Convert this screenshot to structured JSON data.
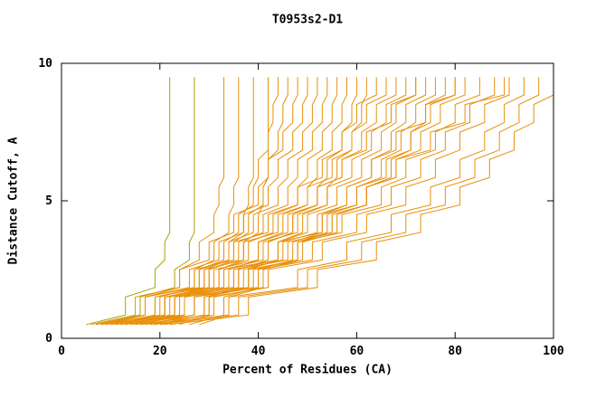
{
  "chart_data": {
    "type": "line",
    "title": "T0953s2-D1",
    "xlabel": "Percent of Residues (CA)",
    "ylabel": "Distance Cutoff, A",
    "xlim": [
      0,
      100
    ],
    "ylim": [
      0,
      10
    ],
    "x_ticks": [
      0,
      20,
      40,
      60,
      80,
      100
    ],
    "y_ticks": [
      0,
      5,
      10
    ],
    "grid": false,
    "legend": "none",
    "line_color": "#e8900a",
    "alt_line_color": "#a8a400",
    "frame_color": "#000000",
    "background_color": "#ffffff",
    "cutoffs": [
      0.5,
      1.5,
      2.5,
      3.5,
      4.5,
      5.5,
      6.5,
      7.5,
      8.5,
      9.5
    ],
    "series": [
      {
        "color": "#a8a400",
        "percents": [
          5,
          13,
          19,
          21,
          22,
          22,
          22,
          22,
          22,
          22
        ]
      },
      {
        "color": "#a8a400",
        "percents": [
          7,
          16,
          23,
          26,
          27,
          27,
          27,
          27,
          27,
          27
        ]
      },
      {
        "percents": [
          9,
          17,
          24,
          28,
          31,
          32,
          33,
          33,
          33,
          33
        ]
      },
      {
        "percents": [
          11,
          20,
          27,
          31,
          34,
          35,
          36,
          36,
          36,
          36
        ]
      },
      {
        "percents": [
          13,
          22,
          29,
          34,
          37,
          38,
          39,
          39,
          39,
          39
        ]
      },
      {
        "percents": [
          15,
          24,
          32,
          37,
          40,
          41,
          42,
          42,
          42,
          42
        ]
      },
      {
        "percents": [
          17,
          23,
          28,
          33,
          36,
          39,
          40,
          42,
          43,
          44
        ]
      },
      {
        "percents": [
          19,
          25,
          30,
          35,
          38,
          41,
          42,
          44,
          45,
          46
        ]
      },
      {
        "percents": [
          6,
          15,
          24,
          30,
          35,
          40,
          42,
          45,
          47,
          48
        ]
      },
      {
        "percents": [
          8,
          17,
          26,
          32,
          37,
          42,
          44,
          47,
          49,
          50
        ]
      },
      {
        "percents": [
          10,
          19,
          28,
          34,
          39,
          44,
          46,
          49,
          51,
          52
        ]
      },
      {
        "percents": [
          12,
          21,
          30,
          36,
          41,
          46,
          48,
          51,
          53,
          54
        ]
      },
      {
        "percents": [
          14,
          23,
          32,
          38,
          43,
          48,
          50,
          53,
          55,
          56
        ]
      },
      {
        "percents": [
          16,
          25,
          34,
          40,
          45,
          50,
          52,
          55,
          57,
          58
        ]
      },
      {
        "percents": [
          18,
          27,
          36,
          42,
          47,
          52,
          54,
          57,
          59,
          60
        ]
      },
      {
        "percents": [
          20,
          29,
          38,
          44,
          49,
          54,
          56,
          59,
          61,
          62
        ]
      },
      {
        "percents": [
          7,
          17,
          27,
          35,
          42,
          48,
          53,
          57,
          60,
          64
        ]
      },
      {
        "percents": [
          9,
          19,
          29,
          37,
          44,
          50,
          55,
          59,
          62,
          66
        ]
      },
      {
        "percents": [
          11,
          21,
          31,
          40,
          46,
          52,
          57,
          61,
          64,
          68
        ]
      },
      {
        "percents": [
          13,
          23,
          33,
          41,
          48,
          54,
          59,
          63,
          66,
          70
        ]
      },
      {
        "percents": [
          15,
          25,
          35,
          44,
          50,
          56,
          61,
          65,
          68,
          72
        ]
      },
      {
        "percents": [
          17,
          27,
          37,
          45,
          52,
          58,
          63,
          67,
          70,
          74
        ]
      },
      {
        "percents": [
          19,
          29,
          39,
          48,
          54,
          60,
          65,
          69,
          72,
          76
        ]
      },
      {
        "percents": [
          21,
          31,
          41,
          49,
          56,
          62,
          67,
          71,
          74,
          78
        ]
      },
      {
        "percents": [
          8,
          21,
          33,
          44,
          53,
          60,
          66,
          71,
          75,
          80
        ]
      },
      {
        "percents": [
          10,
          23,
          35,
          46,
          55,
          62,
          68,
          73,
          77,
          82
        ]
      },
      {
        "percents": [
          12,
          25,
          38,
          48,
          57,
          65,
          70,
          76,
          80,
          85
        ]
      },
      {
        "percents": [
          14,
          27,
          40,
          51,
          60,
          67,
          73,
          78,
          83,
          88
        ]
      },
      {
        "percents": [
          16,
          30,
          42,
          53,
          62,
          70,
          76,
          81,
          86,
          91
        ]
      },
      {
        "percents": [
          18,
          34,
          48,
          58,
          67,
          75,
          81,
          86,
          90,
          94
        ]
      },
      {
        "percents": [
          20,
          36,
          50,
          61,
          70,
          78,
          84,
          89,
          93,
          97
        ]
      },
      {
        "percents": [
          22,
          38,
          52,
          64,
          73,
          81,
          87,
          92,
          96,
          100
        ]
      },
      {
        "percents": [
          24,
          30,
          36,
          42,
          47,
          52,
          57,
          62,
          67,
          72
        ]
      },
      {
        "percents": [
          26,
          33,
          40,
          47,
          53,
          58,
          63,
          68,
          74,
          80
        ]
      },
      {
        "percents": [
          28,
          34,
          41,
          48,
          55,
          62,
          68,
          75,
          82,
          90
        ]
      }
    ]
  }
}
